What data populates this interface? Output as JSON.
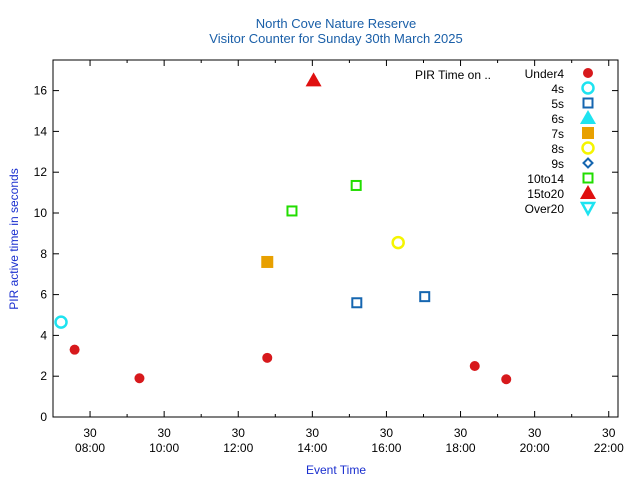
{
  "chart_data": {
    "type": "scatter",
    "title": "North Cove Nature Reserve",
    "subtitle": "Visitor Counter for Sunday 30th March 2025",
    "xlabel": "Event Time",
    "ylabel": "PIR active time in seconds",
    "xlim": [
      "07:00",
      "22:15"
    ],
    "ylim": [
      0,
      17.5
    ],
    "grid": false,
    "legend_position": "top-right",
    "legend_title": "PIR Time on ..",
    "y_ticks": [
      "0",
      "2",
      "4",
      "6",
      "8",
      "10",
      "12",
      "14",
      "16"
    ],
    "x_ticks": [
      {
        "time": "08:00",
        "day": "30",
        "label": "08:00"
      },
      {
        "time": "10:00",
        "day": "30",
        "label": "10:00"
      },
      {
        "time": "12:00",
        "day": "30",
        "label": "12:00"
      },
      {
        "time": "14:00",
        "day": "30",
        "label": "14:00"
      },
      {
        "time": "16:00",
        "day": "30",
        "label": "16:00"
      },
      {
        "time": "18:00",
        "day": "30",
        "label": "18:00"
      },
      {
        "time": "20:00",
        "day": "30",
        "label": "20:00"
      },
      {
        "time": "22:00",
        "day": "30",
        "label": "22:00"
      }
    ],
    "series": [
      {
        "name": "Under4",
        "marker": "circle-filled",
        "color": "#d7191c",
        "points": [
          {
            "x": "07:35",
            "y": 3.3
          },
          {
            "x": "09:20",
            "y": 1.9
          },
          {
            "x": "12:47",
            "y": 2.9
          },
          {
            "x": "18:23",
            "y": 2.5
          },
          {
            "x": "19:14",
            "y": 1.85
          }
        ]
      },
      {
        "name": "4s",
        "marker": "circle-open",
        "color": "#1ee3f0",
        "points": [
          {
            "x": "07:13",
            "y": 4.65
          }
        ]
      },
      {
        "name": "5s",
        "marker": "square-open",
        "color": "#1566b0",
        "points": [
          {
            "x": "15:12",
            "y": 5.6
          },
          {
            "x": "17:02",
            "y": 5.9
          }
        ]
      },
      {
        "name": "6s",
        "marker": "triangle-filled",
        "color": "#1ee3f0",
        "points": []
      },
      {
        "name": "7s",
        "marker": "square-filled",
        "color": "#e8a000",
        "points": [
          {
            "x": "12:47",
            "y": 7.6
          }
        ]
      },
      {
        "name": "8s",
        "marker": "circle-open",
        "color": "#f5f500",
        "points": [
          {
            "x": "16:19",
            "y": 8.55
          }
        ]
      },
      {
        "name": "9s",
        "marker": "diamond-open",
        "color": "#1566b0",
        "points": []
      },
      {
        "name": "10to14",
        "marker": "square-open",
        "color": "#22dd00",
        "points": [
          {
            "x": "13:27",
            "y": 10.1
          },
          {
            "x": "15:11",
            "y": 11.35
          }
        ]
      },
      {
        "name": "15to20",
        "marker": "triangle-filled",
        "color": "#e01010",
        "points": [
          {
            "x": "14:02",
            "y": 16.5
          }
        ]
      },
      {
        "name": "Over20",
        "marker": "triangle-down-open",
        "color": "#1ee3f0",
        "points": []
      }
    ]
  }
}
